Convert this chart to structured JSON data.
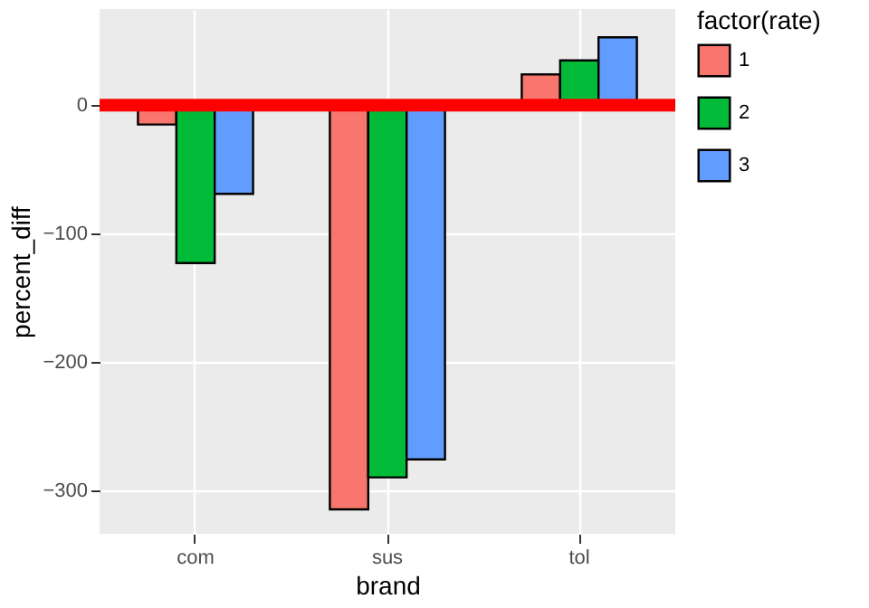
{
  "chart_data": {
    "type": "bar",
    "xlabel": "brand",
    "ylabel": "percent_diff",
    "legend_title": "factor(rate)",
    "categories": [
      "com",
      "sus",
      "tol"
    ],
    "series": [
      {
        "name": "1",
        "color": "#f8766d",
        "values": [
          -15,
          -315,
          24
        ]
      },
      {
        "name": "2",
        "color": "#00ba38",
        "values": [
          -123,
          -290,
          35
        ]
      },
      {
        "name": "3",
        "color": "#619cff",
        "values": [
          -69,
          -276,
          53
        ]
      }
    ],
    "ylim": [
      -334,
      75
    ],
    "yticks": [
      -300,
      -200,
      -100,
      0
    ],
    "grid": true,
    "legend": "right",
    "ref_lines": [
      {
        "axis": "y",
        "value": 0,
        "color": "#ff0000"
      }
    ]
  }
}
